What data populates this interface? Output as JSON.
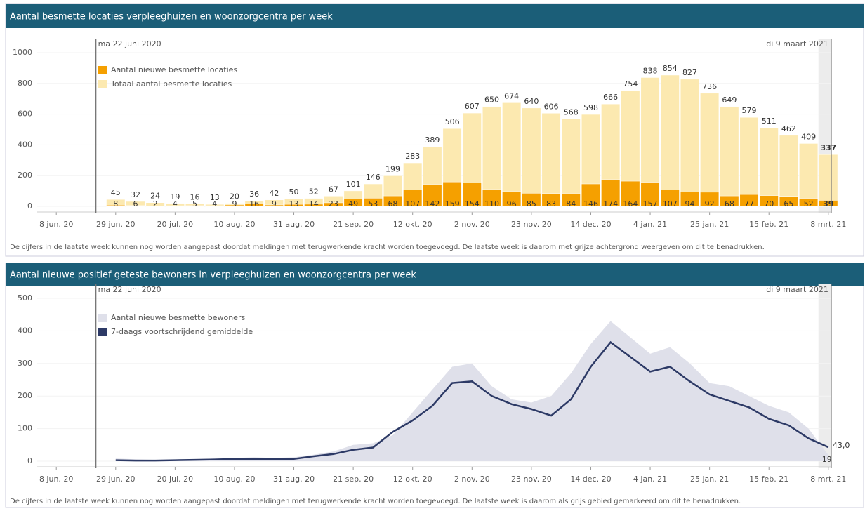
{
  "chart_data": [
    {
      "type": "bar",
      "barmode": "overlay",
      "title": "Aantal besmette locaties verpleeghuizen en woonzorgcentra per week",
      "footnote": "De cijfers in de laatste week kunnen nog worden aangepast doordat meldingen met terugwerkende kracht worden toegevoegd. De laatste week is daarom met grijze achtergrond weergeven om dit te benadrukken.",
      "annotations": [
        {
          "text": "ma 22 juni 2020",
          "x": "2020-06-22"
        },
        {
          "text": "di 9 maart 2021",
          "x": "2021-03-09"
        }
      ],
      "x": [
        "2020-06-29",
        "2020-07-06",
        "2020-07-13",
        "2020-07-20",
        "2020-07-27",
        "2020-08-03",
        "2020-08-10",
        "2020-08-17",
        "2020-08-24",
        "2020-08-31",
        "2020-09-07",
        "2020-09-14",
        "2020-09-21",
        "2020-09-28",
        "2020-10-05",
        "2020-10-12",
        "2020-10-19",
        "2020-10-26",
        "2020-11-02",
        "2020-11-09",
        "2020-11-16",
        "2020-11-23",
        "2020-11-30",
        "2020-12-07",
        "2020-12-14",
        "2020-12-21",
        "2020-12-28",
        "2021-01-04",
        "2021-01-11",
        "2021-01-18",
        "2021-01-25",
        "2021-02-01",
        "2021-02-08",
        "2021-02-15",
        "2021-02-22",
        "2021-03-01",
        "2021-03-08"
      ],
      "series": [
        {
          "name": "Totaal aantal besmette locaties",
          "color": "#fce9b0",
          "values": [
            45,
            32,
            24,
            19,
            16,
            13,
            20,
            36,
            42,
            50,
            52,
            67,
            101,
            146,
            199,
            283,
            389,
            506,
            607,
            650,
            674,
            640,
            606,
            568,
            598,
            666,
            754,
            838,
            854,
            827,
            736,
            649,
            579,
            511,
            462,
            409,
            337
          ]
        },
        {
          "name": "Aantal nieuwe besmette locaties",
          "color": "#f5a000",
          "values": [
            8,
            6,
            2,
            4,
            5,
            4,
            9,
            16,
            9,
            13,
            14,
            23,
            49,
            53,
            68,
            107,
            142,
            159,
            154,
            110,
            96,
            85,
            83,
            84,
            146,
            174,
            164,
            157,
            107,
            94,
            92,
            68,
            77,
            70,
            65,
            52,
            39
          ]
        }
      ],
      "xlim": [
        "2020-06-01",
        "2021-03-15"
      ],
      "xticks": [
        {
          "value": "2020-06-08",
          "label": "8 jun. 20"
        },
        {
          "value": "2020-06-29",
          "label": "29 jun. 20"
        },
        {
          "value": "2020-07-20",
          "label": "20 jul. 20"
        },
        {
          "value": "2020-08-10",
          "label": "10 aug. 20"
        },
        {
          "value": "2020-08-31",
          "label": "31 aug. 20"
        },
        {
          "value": "2020-09-21",
          "label": "21 sep. 20"
        },
        {
          "value": "2020-10-12",
          "label": "12 okt. 20"
        },
        {
          "value": "2020-11-02",
          "label": "2 nov. 20"
        },
        {
          "value": "2020-11-23",
          "label": "23 nov. 20"
        },
        {
          "value": "2020-12-14",
          "label": "14 dec. 20"
        },
        {
          "value": "2021-01-04",
          "label": "4 jan. 21"
        },
        {
          "value": "2021-01-25",
          "label": "25 jan. 21"
        },
        {
          "value": "2021-02-15",
          "label": "15 feb. 21"
        },
        {
          "value": "2021-03-08",
          "label": "8 mrt. 21"
        }
      ],
      "ylim": [
        0,
        1000
      ],
      "yticks": [
        0,
        200,
        400,
        600,
        800,
        1000
      ],
      "legend": "top-left"
    },
    {
      "type": "line",
      "title": "Aantal nieuwe positief geteste bewoners in verpleeghuizen en woonzorgcentra per week",
      "footnote": "De cijfers in de laatste week kunnen nog worden aangepast doordat meldingen met terugwerkende kracht worden toegevoegd. De laatste week is daarom als grijs gebied gemarkeerd om dit te benadrukken.",
      "annotations": [
        {
          "text": "ma 22 juni 2020",
          "x": "2020-06-22"
        },
        {
          "text": "di 9 maart 2021",
          "x": "2021-03-09"
        }
      ],
      "x": [
        "2020-06-29",
        "2020-07-06",
        "2020-07-13",
        "2020-07-20",
        "2020-07-27",
        "2020-08-03",
        "2020-08-10",
        "2020-08-17",
        "2020-08-24",
        "2020-08-31",
        "2020-09-07",
        "2020-09-14",
        "2020-09-21",
        "2020-09-28",
        "2020-10-05",
        "2020-10-12",
        "2020-10-19",
        "2020-10-26",
        "2020-11-02",
        "2020-11-09",
        "2020-11-16",
        "2020-11-23",
        "2020-11-30",
        "2020-12-07",
        "2020-12-14",
        "2020-12-21",
        "2020-12-28",
        "2021-01-04",
        "2021-01-11",
        "2021-01-18",
        "2021-01-25",
        "2021-02-01",
        "2021-02-08",
        "2021-02-15",
        "2021-02-22",
        "2021-03-01",
        "2021-03-08"
      ],
      "series": [
        {
          "name": "Aantal nieuwe besmette bewoners",
          "style": "area",
          "color": "#dfe0ea",
          "label_last": true,
          "values": [
            8,
            6,
            4,
            5,
            6,
            8,
            10,
            12,
            10,
            12,
            20,
            30,
            50,
            55,
            80,
            150,
            220,
            290,
            300,
            230,
            190,
            180,
            200,
            270,
            360,
            430,
            380,
            330,
            350,
            300,
            240,
            230,
            200,
            170,
            150,
            100,
            19
          ]
        },
        {
          "name": "7-daags voortschrijdend gemiddelde",
          "style": "line",
          "color": "#2d3a66",
          "label_last": true,
          "values": [
            3,
            2,
            2,
            3,
            4,
            5,
            7,
            7,
            6,
            7,
            15,
            22,
            35,
            42,
            90,
            125,
            170,
            240,
            245,
            200,
            175,
            160,
            140,
            190,
            290,
            365,
            320,
            275,
            290,
            245,
            205,
            185,
            165,
            130,
            110,
            70,
            43
          ],
          "value_labels": [
            null,
            null,
            null,
            null,
            null,
            null,
            null,
            null,
            null,
            null,
            null,
            null,
            null,
            null,
            null,
            null,
            null,
            null,
            null,
            null,
            null,
            null,
            null,
            null,
            null,
            null,
            null,
            null,
            null,
            null,
            null,
            null,
            null,
            null,
            null,
            null,
            "43,0"
          ]
        }
      ],
      "xlim": [
        "2020-06-01",
        "2021-03-15"
      ],
      "xticks": [
        {
          "value": "2020-06-08",
          "label": "8 jun. 20"
        },
        {
          "value": "2020-06-29",
          "label": "29 jun. 20"
        },
        {
          "value": "2020-07-20",
          "label": "20 jul. 20"
        },
        {
          "value": "2020-08-10",
          "label": "10 aug. 20"
        },
        {
          "value": "2020-08-31",
          "label": "31 aug. 20"
        },
        {
          "value": "2020-09-21",
          "label": "21 sep. 20"
        },
        {
          "value": "2020-10-12",
          "label": "12 okt. 20"
        },
        {
          "value": "2020-11-02",
          "label": "2 nov. 20"
        },
        {
          "value": "2020-11-23",
          "label": "23 nov. 20"
        },
        {
          "value": "2020-12-14",
          "label": "14 dec. 20"
        },
        {
          "value": "2021-01-04",
          "label": "4 jan. 21"
        },
        {
          "value": "2021-01-25",
          "label": "25 jan. 21"
        },
        {
          "value": "2021-02-15",
          "label": "15 feb. 21"
        },
        {
          "value": "2021-03-08",
          "label": "8 mrt. 21"
        }
      ],
      "ylim": [
        0,
        500
      ],
      "yticks": [
        0,
        100,
        200,
        300,
        400,
        500
      ],
      "legend": "top-left"
    }
  ]
}
